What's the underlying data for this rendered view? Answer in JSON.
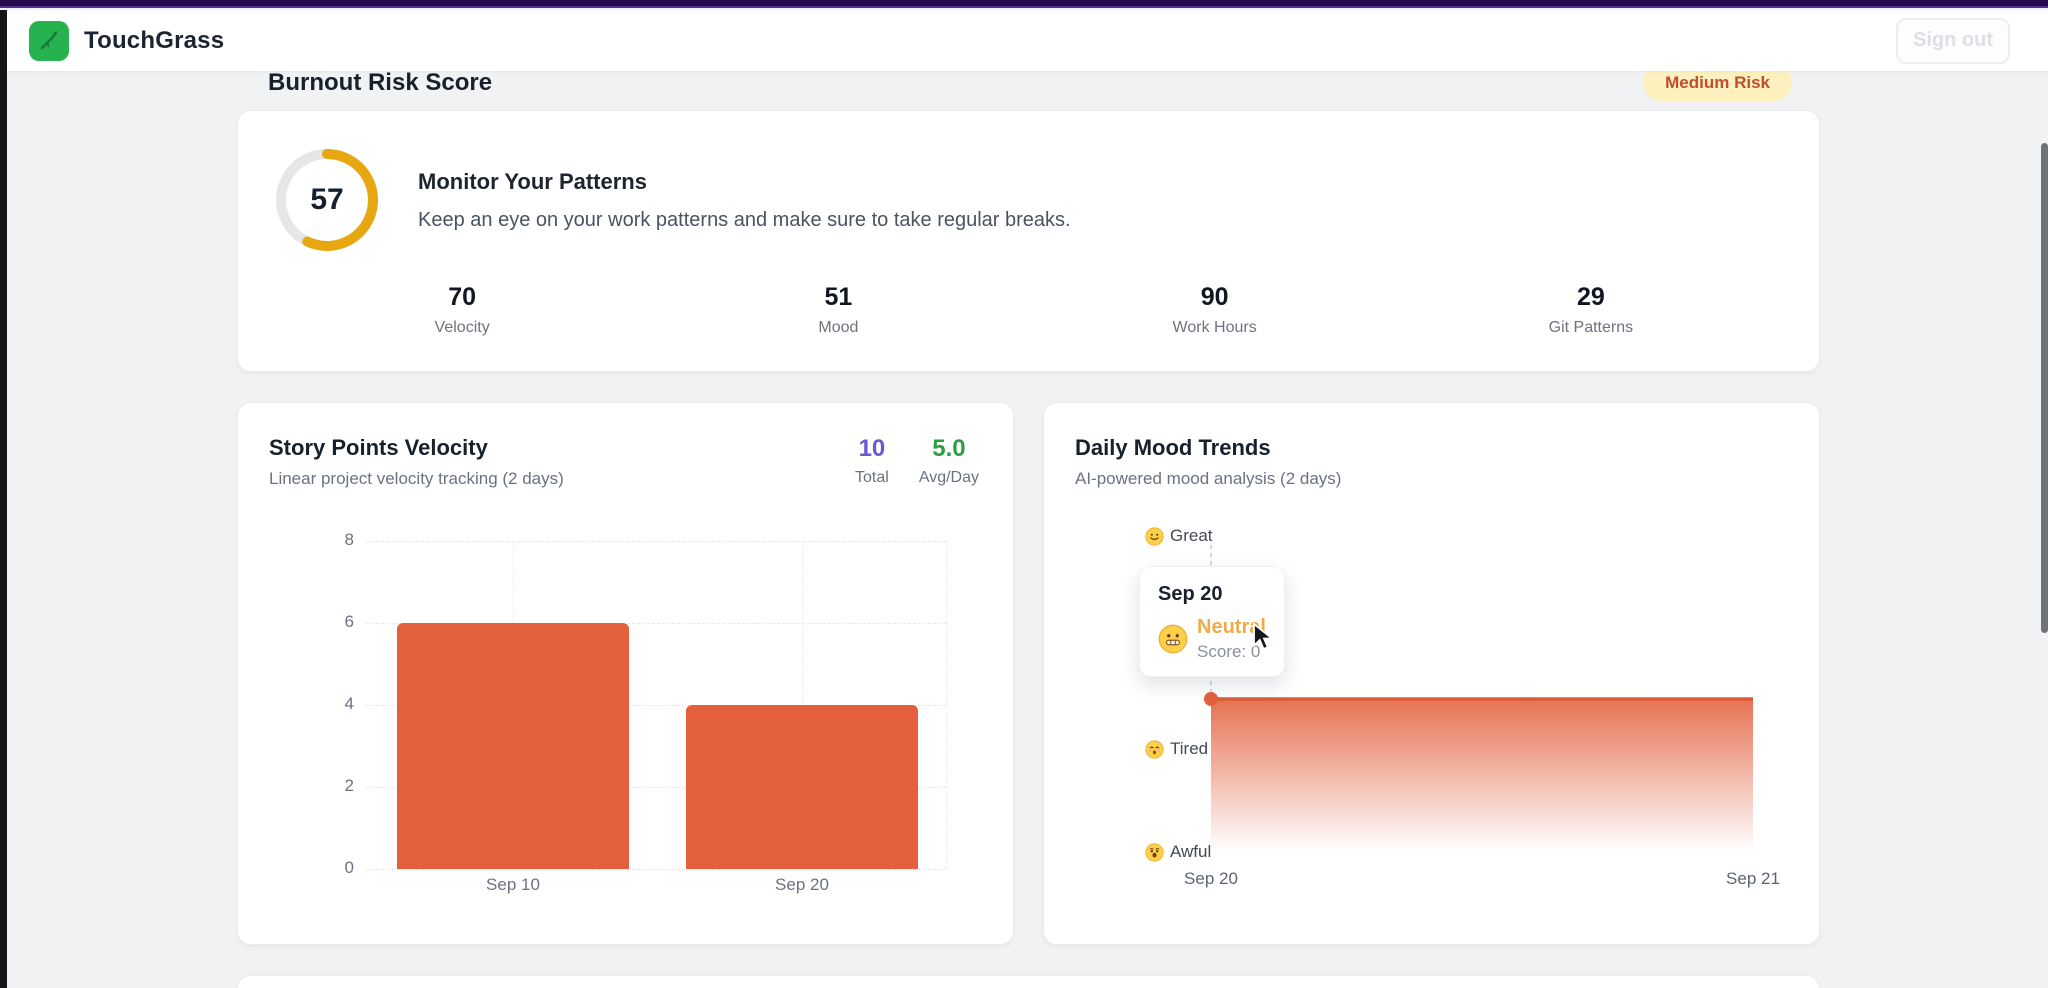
{
  "header": {
    "brand": "TouchGrass",
    "signout_label": "Sign out"
  },
  "burnout": {
    "title": "Burnout Risk Score",
    "badge": "Medium Risk",
    "score": "57",
    "headline": "Monitor Your Patterns",
    "description": "Keep an eye on your work patterns and make sure to take regular breaks.",
    "metrics": [
      {
        "value": "70",
        "label": "Velocity"
      },
      {
        "value": "51",
        "label": "Mood"
      },
      {
        "value": "90",
        "label": "Work Hours"
      },
      {
        "value": "29",
        "label": "Git Patterns"
      }
    ]
  },
  "velocity_card": {
    "title": "Story Points Velocity",
    "subtitle": "Linear project velocity tracking (2 days)",
    "stats": [
      {
        "value": "10",
        "label": "Total",
        "color": "#6a5ad0"
      },
      {
        "value": "5.0",
        "label": "Avg/Day",
        "color": "#2e9e44"
      }
    ]
  },
  "mood_card": {
    "title": "Daily Mood Trends",
    "subtitle": "AI-powered mood analysis (2 days)"
  },
  "chart_data": [
    {
      "type": "bar",
      "title": "Story Points Velocity",
      "categories": [
        "Sep 10",
        "Sep 20"
      ],
      "values": [
        6,
        4
      ],
      "ylim": [
        0,
        8
      ],
      "yticks": [
        0,
        2,
        4,
        6,
        8
      ],
      "tick_labels": [
        "8",
        "6",
        "4",
        "2",
        "0"
      ],
      "bar_color": "#e4603d",
      "grid": "dashed",
      "legend": "none",
      "total": 10,
      "avg_per_day": 5.0
    },
    {
      "type": "area",
      "title": "Daily Mood Trends",
      "x": [
        "Sep 20",
        "Sep 21"
      ],
      "values": [
        0,
        0
      ],
      "value_scale": "mood score, Awful=-2 to Great=2, line flat at Neutral=0",
      "y_labels": [
        {
          "label": "Great",
          "emoji": "smile"
        },
        {
          "label": "Tired",
          "emoji": "sleepy"
        },
        {
          "label": "Awful",
          "emoji": "shock"
        }
      ],
      "line_color": "#e4603d",
      "fill": "gradient orange to transparent",
      "legend": "none",
      "hover": {
        "date": "Sep 20",
        "mood": "Neutral",
        "score_text": "Score: 0",
        "emoji": "grimace"
      }
    }
  ],
  "colors": {
    "topbar": "#250a4e",
    "brand_green": "#25b24f",
    "accent_orange": "#e4603d",
    "gauge_yellow": "#e6a711",
    "badge_bg": "#fcf1be",
    "badge_text": "#bf4e2c",
    "stat_purple": "#6a5ad0",
    "stat_green": "#2e9e44",
    "tooltip_mood_amber": "#eeab4a"
  }
}
